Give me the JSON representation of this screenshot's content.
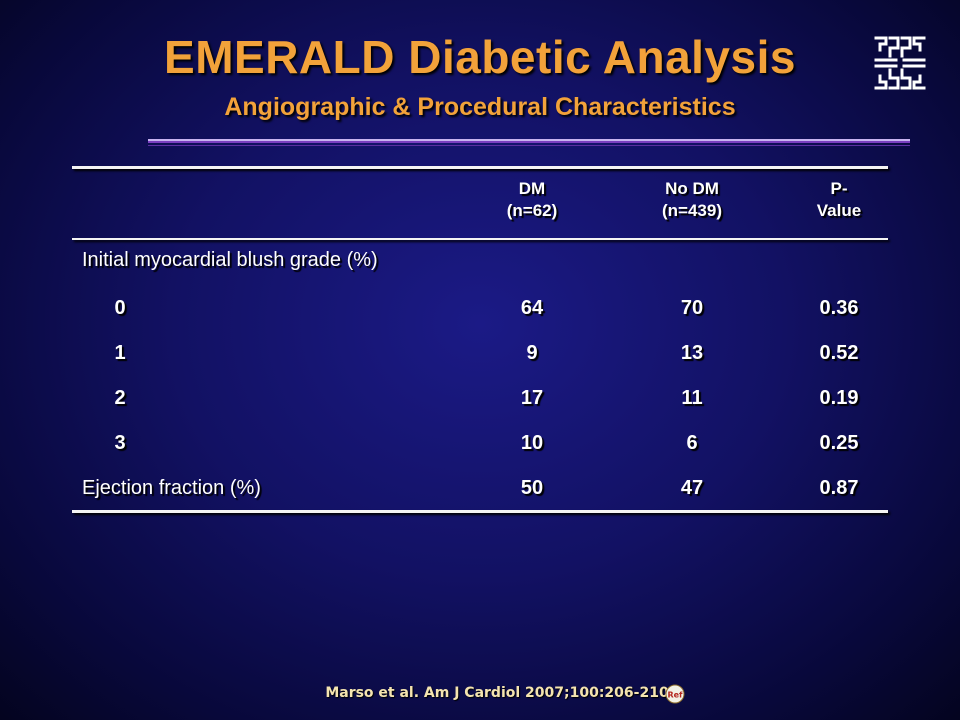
{
  "slide": {
    "title": "EMERALD Diabetic Analysis",
    "subtitle": "Angiographic & Procedural Characteristics",
    "citation": "Marso et al. Am J Cardiol 2007;100:206-210",
    "ref_icon_label": "Ref"
  },
  "table": {
    "headers": [
      {
        "line1": "DM",
        "line2": "(n=62)"
      },
      {
        "line1": "No DM",
        "line2": "(n=439)"
      },
      {
        "line1": "P-",
        "line2": "Value"
      }
    ],
    "blush_section_label": "Initial myocardial blush grade (%)",
    "blush_rows": [
      {
        "grade": "0",
        "dm": "64",
        "no_dm": "70",
        "p": "0.36"
      },
      {
        "grade": "1",
        "dm": "9",
        "no_dm": "13",
        "p": "0.52"
      },
      {
        "grade": "2",
        "dm": "17",
        "no_dm": "11",
        "p": "0.19"
      },
      {
        "grade": "3",
        "dm": "10",
        "no_dm": "6",
        "p": "0.25"
      }
    ],
    "ejection": {
      "label": "Ejection fraction (%)",
      "dm": "50",
      "no_dm": "47",
      "p": "0.87"
    }
  },
  "colors": {
    "title": "#f2a23a",
    "background": "#121163",
    "divider_top": "#c7b3f0",
    "divider_bottom": "#7a3fc0",
    "table_text": "#ffffff",
    "citation": "#f4e4b0"
  }
}
